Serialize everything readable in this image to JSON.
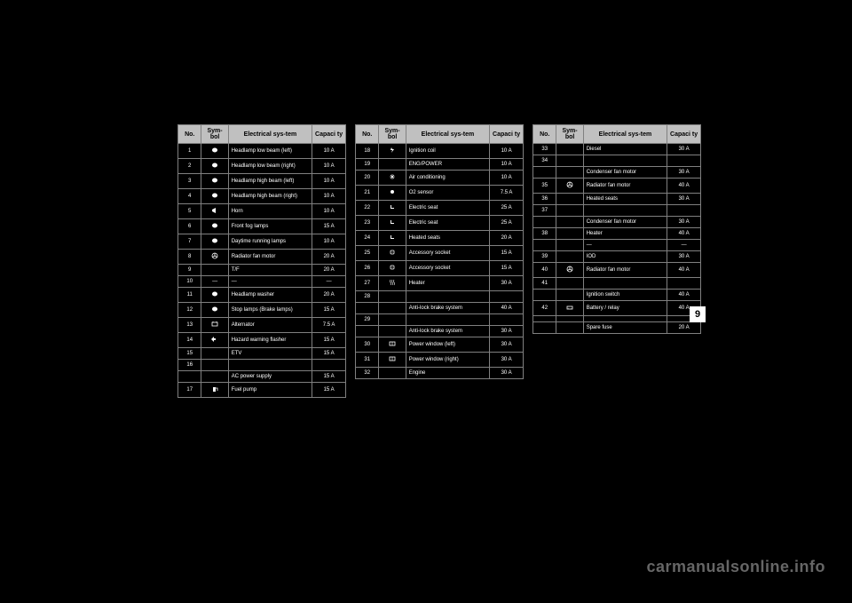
{
  "headers": {
    "no": "No.",
    "symbol": "Sym-bol",
    "system": "Electrical sys-tem",
    "capacity": "Capaci ty"
  },
  "chapter": "9",
  "watermark": "carmanualsonline.info",
  "table1": [
    {
      "no": "1",
      "sym": "light",
      "sys": "Headlamp low beam (left)",
      "cap": "10 A"
    },
    {
      "no": "2",
      "sym": "light",
      "sys": "Headlamp low beam (right)",
      "cap": "10 A"
    },
    {
      "no": "3",
      "sym": "light",
      "sys": "Headlamp high beam (left)",
      "cap": "10 A"
    },
    {
      "no": "4",
      "sym": "light",
      "sys": "Headlamp high beam (right)",
      "cap": "10 A"
    },
    {
      "no": "5",
      "sym": "horn",
      "sys": "Horn",
      "cap": "10 A"
    },
    {
      "no": "6",
      "sym": "light",
      "sys": "Front fog lamps",
      "cap": "15 A"
    },
    {
      "no": "7",
      "sym": "light",
      "sys": "Daytime running lamps",
      "cap": "10 A"
    },
    {
      "no": "8",
      "sym": "fan",
      "sys": "Radiator fan motor",
      "cap": "20 A"
    },
    {
      "no": "9",
      "sym": "text",
      "sys": "T/F",
      "cap": "20 A"
    },
    {
      "no": "10",
      "sym": "—",
      "sys": "—",
      "cap": "—"
    },
    {
      "no": "11",
      "sym": "light",
      "sys": "Headlamp washer",
      "cap": "20 A"
    },
    {
      "no": "12",
      "sym": "light",
      "sys": "Stop lamps (Brake lamps)",
      "cap": "15 A"
    },
    {
      "no": "13",
      "sym": "alt",
      "sys": "Alternator",
      "cap": "7.5 A"
    },
    {
      "no": "14",
      "sym": "turn",
      "sys": "Hazard warning flasher",
      "cap": "15 A"
    },
    {
      "no": "15",
      "sym": "text",
      "sys": "ETV",
      "cap": "15 A"
    },
    {
      "no": "16",
      "sym": "label",
      "sys": "",
      "cap": ""
    },
    {
      "no": "",
      "sym": "",
      "sys": "AC power supply",
      "cap": "15 A"
    },
    {
      "no": "17",
      "sym": "fuel",
      "sys": "Fuel pump",
      "cap": "15 A"
    }
  ],
  "table2": [
    {
      "no": "18",
      "sym": "ign",
      "sys": "Ignition coil",
      "cap": "10 A"
    },
    {
      "no": "19",
      "sym": "text",
      "sys": "ENG/POWER",
      "cap": "10 A"
    },
    {
      "no": "20",
      "sym": "ac",
      "sys": "Air conditioning",
      "cap": "10 A"
    },
    {
      "no": "21",
      "sym": "sens",
      "sys": "O2 sensor",
      "cap": "7.5 A"
    },
    {
      "no": "22",
      "sym": "seat",
      "sys": "Electric seat",
      "cap": "25 A"
    },
    {
      "no": "23",
      "sym": "seat",
      "sys": "Electric seat",
      "cap": "25 A"
    },
    {
      "no": "24",
      "sym": "seat",
      "sys": "Heated seats",
      "cap": "20 A"
    },
    {
      "no": "25",
      "sym": "sock",
      "sys": "Accessory socket",
      "cap": "15 A"
    },
    {
      "no": "26",
      "sym": "sock",
      "sys": "Accessory socket",
      "cap": "15 A"
    },
    {
      "no": "27",
      "sym": "heat",
      "sys": "Heater",
      "cap": "30 A"
    },
    {
      "no": "28",
      "sym": "label",
      "sys": "",
      "cap": ""
    },
    {
      "no": "",
      "sym": "",
      "sys": "Anti-lock brake system",
      "cap": "40 A"
    },
    {
      "no": "29",
      "sym": "label",
      "sys": "",
      "cap": ""
    },
    {
      "no": "",
      "sym": "",
      "sys": "Anti-lock brake system",
      "cap": "30 A"
    },
    {
      "no": "30",
      "sym": "wind",
      "sys": "Power window (left)",
      "cap": "30 A"
    },
    {
      "no": "31",
      "sym": "wind",
      "sys": "Power window (right)",
      "cap": "30 A"
    },
    {
      "no": "32",
      "sym": "text",
      "sys": "Engine",
      "cap": "30 A"
    }
  ],
  "table3": [
    {
      "no": "33",
      "sym": "text",
      "sys": "Diesel",
      "cap": "30 A"
    },
    {
      "no": "34",
      "sym": "label",
      "sys": "",
      "cap": ""
    },
    {
      "no": "",
      "sym": "",
      "sys": "Condenser fan motor",
      "cap": "30 A"
    },
    {
      "no": "35",
      "sym": "fan",
      "sys": "Radiator fan motor",
      "cap": "40 A"
    },
    {
      "no": "36",
      "sym": "text",
      "sys": "Heated seats",
      "cap": "30 A"
    },
    {
      "no": "37",
      "sym": "label",
      "sys": "",
      "cap": ""
    },
    {
      "no": "",
      "sym": "",
      "sys": "Condenser fan motor",
      "cap": "30 A"
    },
    {
      "no": "38",
      "sym": "text",
      "sys": "Heater",
      "cap": "40 A"
    },
    {
      "no": "",
      "sym": "",
      "sys": "—",
      "cap": "—"
    },
    {
      "no": "39",
      "sym": "text",
      "sys": "IOD",
      "cap": "30 A"
    },
    {
      "no": "40",
      "sym": "fan",
      "sys": "Radiator fan motor",
      "cap": "40 A"
    },
    {
      "no": "41",
      "sym": "label",
      "sys": "",
      "cap": ""
    },
    {
      "no": "",
      "sym": "",
      "sys": "Ignition switch",
      "cap": "40 A"
    },
    {
      "no": "42",
      "sym": "batt",
      "sys": "Battery / relay",
      "cap": "40 A"
    },
    {
      "no": "",
      "sym": "",
      "sys": "",
      "cap": ""
    },
    {
      "no": "",
      "sym": "",
      "sys": "Spare fuse",
      "cap": "20 A"
    }
  ]
}
